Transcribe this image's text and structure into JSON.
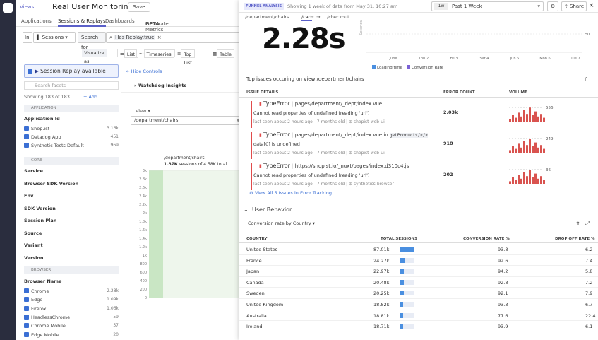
{
  "nav": {
    "views": "Views",
    "title": "Real User Monitoring",
    "save": "Save",
    "tabs": [
      {
        "label": "Applications"
      },
      {
        "label": "Sessions & Replays"
      },
      {
        "label": "Dashboards"
      },
      {
        "label": "Generate Metrics"
      }
    ],
    "beta": "BETA"
  },
  "query": {
    "in": "In",
    "scope": "Sessions",
    "search_for": "Search for",
    "filter": "Has Replay:true"
  },
  "visualize": {
    "label": "Visualize as",
    "options": [
      "List",
      "Timeseries",
      "Top List",
      "Table"
    ]
  },
  "facets": {
    "replay_pill": "Session Replay available",
    "search_placeholder": "Search facets",
    "showing": "Showing 183 of 183",
    "add": "Add",
    "sections": {
      "application": "APPLICATION",
      "core": "CORE",
      "browser": "BROWSER"
    },
    "app_group": "Application Id",
    "apps": [
      {
        "name": "Shop.ist",
        "count": "3.16k"
      },
      {
        "name": "Datadog App",
        "count": "451"
      },
      {
        "name": "Synthetic Tests Default",
        "count": "969"
      }
    ],
    "core_items": [
      "Service",
      "Browser SDK Version",
      "Env",
      "SDK Version",
      "Session Plan",
      "Source",
      "Variant",
      "Version"
    ],
    "browser_group": "Browser Name",
    "browsers": [
      {
        "name": "Chrome",
        "count": "2.28k"
      },
      {
        "name": "Edge",
        "count": "1.09k"
      },
      {
        "name": "Firefox",
        "count": "1.06k"
      },
      {
        "name": "HeadlessChrome",
        "count": "59"
      },
      {
        "name": "Chrome Mobile",
        "count": "57"
      },
      {
        "name": "Edge Mobile",
        "count": "20"
      }
    ]
  },
  "main": {
    "hide_controls": "Hide Controls",
    "watchdog": "Watchdog Insights",
    "view_label": "View",
    "view_value": "/department/chairs",
    "funnel_step": "/department/chairs",
    "funnel_sessions_bold": "1.87K",
    "funnel_sessions_rest": " sessions of 4.58K total",
    "y_ticks": [
      "3k",
      "2.8k",
      "2.6k",
      "2.4k",
      "2.2k",
      "2k",
      "1.8k",
      "1.6k",
      "1.4k",
      "1.2k",
      "1k",
      "800",
      "600",
      "400",
      "200",
      "0"
    ]
  },
  "drawer": {
    "badge": "FUNNEL ANALYSIS",
    "showing": "Showing 1 week of data from May 31, 10:27 am",
    "time_short": "1w",
    "time_label": "Past 1 Week",
    "share": "Share",
    "steps": [
      "/department/chairs",
      "/cart",
      "/checkout"
    ],
    "big_stat": "2.28s",
    "trend": {
      "y_label": "Seconds",
      "right_tick": "50",
      "x_labels": [
        "June",
        "Thu 2",
        "Fri 3",
        "Sat 4",
        "Jun 5",
        "Mon 6",
        "Tue 7"
      ],
      "legend": [
        "Loading time",
        "Conversion Rate"
      ],
      "legend_colors": [
        "#4a8fe0",
        "#7b61d6"
      ]
    },
    "top_issues": "Top issues occuring on view /department/chairs",
    "issue_cols": [
      "ISSUE DETAILS",
      "ERROR COUNT",
      "VOLUME"
    ],
    "issues": [
      {
        "type": "TypeError",
        "file": "pages/department/_dept/index.vue",
        "code_pre": "",
        "code": "",
        "message": "Cannot read properties of undefined (reading 'url')",
        "meta": "last seen about 2 hours ago - 7 months old",
        "service": "shopist-web-ui",
        "count": "2.03k",
        "peak": "556"
      },
      {
        "type": "TypeError",
        "file": "pages/department/_dept/index.vue",
        "code_pre": " in ",
        "code": "getProducts/</<",
        "message": "data[0] is undefined",
        "meta": "last seen about 2 hours ago - 7 months old",
        "service": "shopist-web-ui",
        "count": "918",
        "peak": "249"
      },
      {
        "type": "TypeError",
        "file": "https://shopist.io/_nuxt/pages/index.d310c4.js",
        "code_pre": "",
        "code": "",
        "message": "Cannot read properties of undefined (reading 'url')",
        "meta": "last seen about 2 hours ago - 7 months old",
        "service": "synthetics-browser",
        "count": "202",
        "peak": "36"
      }
    ],
    "view_all": "View All 5 Issues in Error Tracking",
    "user_behavior": "User Behavior",
    "conv_select": "Conversion rate by Country",
    "country_cols": [
      "COUNTRY",
      "TOTAL SESSIONS",
      "CONVERSION RATE %",
      "DROP OFF RATE %"
    ],
    "countries": [
      {
        "name": "United States",
        "sessions": "87.01k",
        "share": 1.0,
        "conv": "93.8",
        "drop": "6.2"
      },
      {
        "name": "France",
        "sessions": "24.27k",
        "share": 0.28,
        "conv": "92.6",
        "drop": "7.4"
      },
      {
        "name": "Japan",
        "sessions": "22.97k",
        "share": 0.26,
        "conv": "94.2",
        "drop": "5.8"
      },
      {
        "name": "Canada",
        "sessions": "20.48k",
        "share": 0.24,
        "conv": "92.8",
        "drop": "7.2"
      },
      {
        "name": "Sweden",
        "sessions": "20.25k",
        "share": 0.23,
        "conv": "92.1",
        "drop": "7.9"
      },
      {
        "name": "United Kingdom",
        "sessions": "18.82k",
        "share": 0.22,
        "conv": "93.3",
        "drop": "6.7"
      },
      {
        "name": "Australia",
        "sessions": "18.81k",
        "share": 0.22,
        "conv": "77.6",
        "drop": "22.4"
      },
      {
        "name": "Ireland",
        "sessions": "18.71k",
        "share": 0.22,
        "conv": "93.9",
        "drop": "6.1"
      }
    ]
  }
}
